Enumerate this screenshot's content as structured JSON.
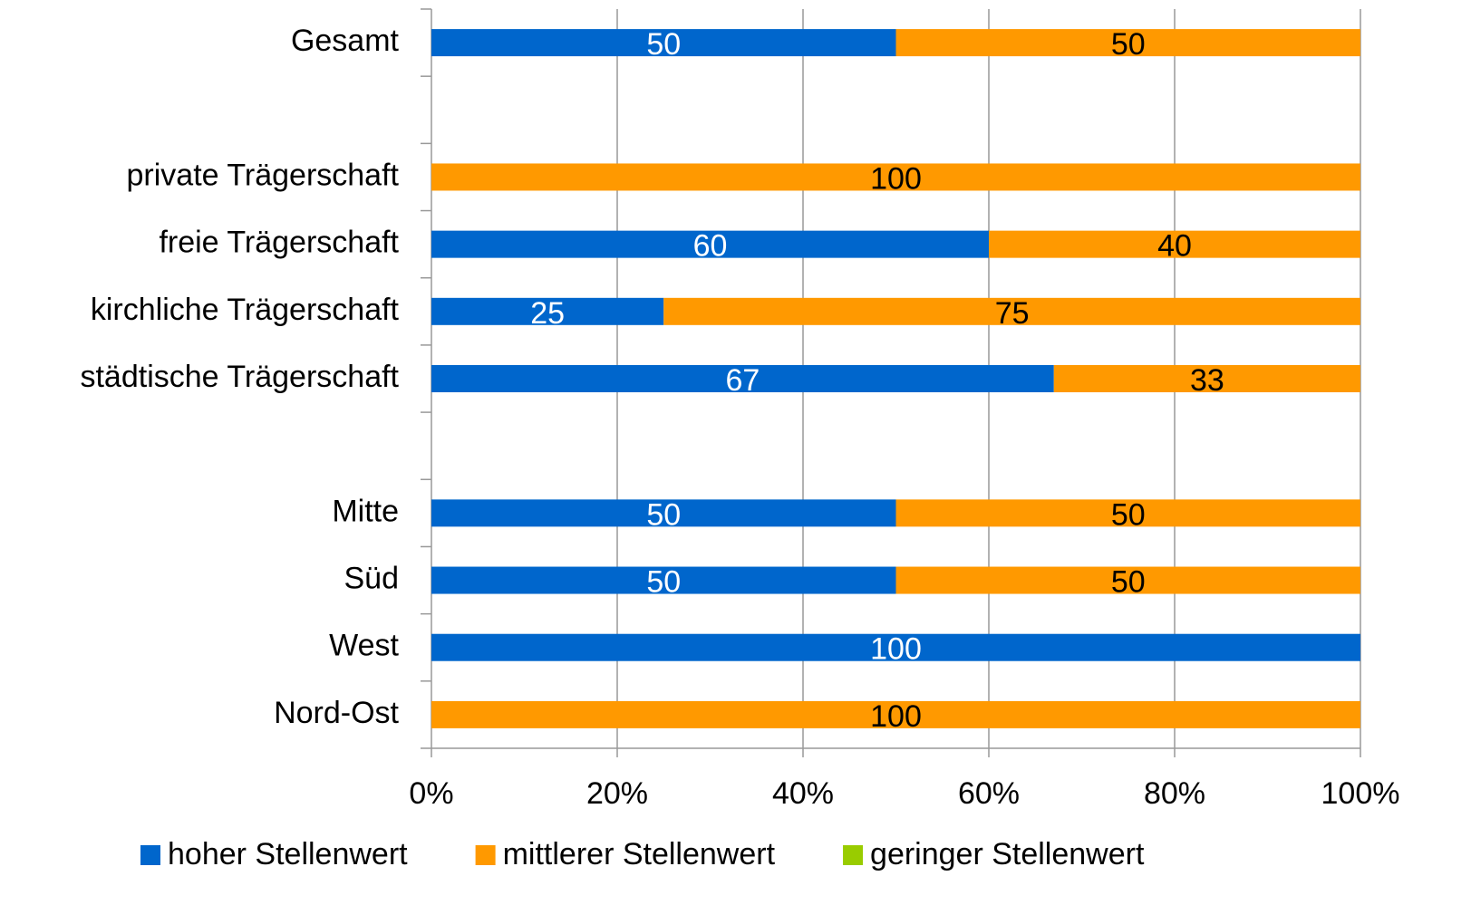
{
  "chart_data": {
    "type": "stacked_bar_horizontal",
    "categories": [
      "Gesamt",
      null,
      "private Trägerschaft",
      "freie Trägerschaft",
      "kirchliche Trägerschaft",
      "städtische Trägerschaft",
      null,
      "Mitte",
      "Süd",
      "West",
      "Nord-Ost"
    ],
    "series": [
      {
        "name": "hoher Stellenwert",
        "color": "#0066cc",
        "label_color": "#ffffff",
        "values": [
          50,
          null,
          null,
          60,
          25,
          67,
          null,
          50,
          50,
          100,
          null
        ]
      },
      {
        "name": "mittlerer Stellenwert",
        "color": "#ff9900",
        "label_color": "#000000",
        "values": [
          50,
          null,
          100,
          40,
          75,
          33,
          null,
          50,
          50,
          null,
          100
        ]
      },
      {
        "name": "geringer Stellenwert",
        "color": "#99cc00",
        "label_color": "#000000",
        "values": [
          null,
          null,
          null,
          null,
          null,
          null,
          null,
          null,
          null,
          null,
          null
        ]
      }
    ],
    "xlim": [
      0,
      100
    ],
    "xticks": [
      {
        "value": 0,
        "label": "0%"
      },
      {
        "value": 20,
        "label": "20%"
      },
      {
        "value": 40,
        "label": "40%"
      },
      {
        "value": 60,
        "label": "60%"
      },
      {
        "value": 80,
        "label": "80%"
      },
      {
        "value": 100,
        "label": "100%"
      }
    ],
    "grid": true,
    "legend": "bottom"
  }
}
